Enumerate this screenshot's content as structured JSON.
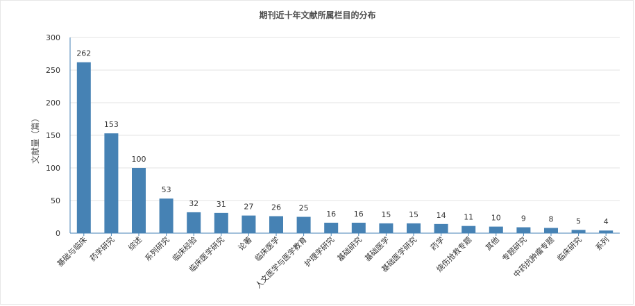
{
  "chart_data": {
    "type": "bar",
    "title": "期刊近十年文献所属栏目的分布",
    "xlabel": "",
    "ylabel": "文献量（篇）",
    "ylim": [
      0,
      300
    ],
    "yticks": [
      0,
      50,
      100,
      150,
      200,
      250,
      300
    ],
    "grid": true,
    "color": "#4682b4",
    "categories": [
      "基础与临床",
      "药学研究",
      "综述",
      "系列研究",
      "临床经验",
      "临床医学研究",
      "论著",
      "临床医学",
      "人文医学与医学教育",
      "护理学研究",
      "基础研究",
      "基础医学",
      "基础医学研究",
      "药学",
      "烧伤抢救专题",
      "其他",
      "专题研究",
      "中药抗肿瘤专题",
      "临床研究",
      "系列"
    ],
    "values": [
      262,
      153,
      100,
      53,
      32,
      31,
      27,
      26,
      25,
      16,
      16,
      15,
      15,
      14,
      11,
      10,
      9,
      8,
      5,
      4
    ]
  }
}
